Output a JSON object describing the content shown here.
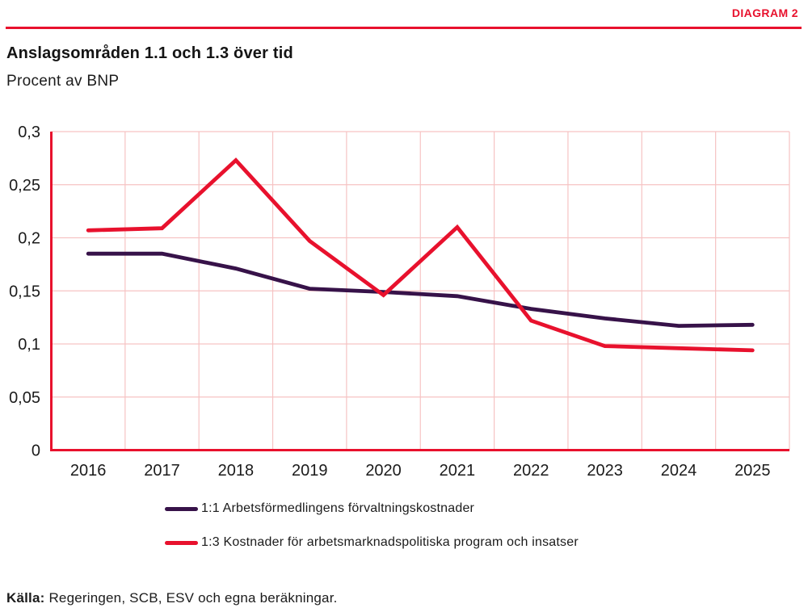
{
  "header": {
    "diagram_label": "DIAGRAM 2",
    "title": "Anslagsområden 1.1 och 1.3 över tid",
    "subtitle": "Procent av BNP",
    "accent_color": "#e8112d"
  },
  "chart_data": {
    "type": "line",
    "title": "Anslagsområden 1.1 och 1.3 över tid",
    "subtitle_ylabel": "Procent av BNP",
    "x_labels": [
      "2016",
      "2017",
      "2018",
      "2019",
      "2020",
      "2021",
      "2022",
      "2023",
      "2024",
      "2025"
    ],
    "series": [
      {
        "name": "1:1 Arbetsförmedlingens förvaltningskostnader",
        "color": "#371249",
        "values": [
          0.185,
          0.185,
          0.171,
          0.152,
          0.149,
          0.145,
          0.133,
          0.124,
          0.117,
          0.118
        ]
      },
      {
        "name": "1:3 Kostnader för arbetsmarknadspolitiska program och insatser",
        "color": "#e8112d",
        "values": [
          0.207,
          0.209,
          0.273,
          0.197,
          0.146,
          0.21,
          0.122,
          0.098,
          0.096,
          0.094
        ]
      }
    ],
    "ylim": [
      0,
      0.3
    ],
    "yticks": [
      0,
      0.05,
      0.1,
      0.15,
      0.2,
      0.25,
      0.3
    ],
    "ytick_labels": [
      "0",
      "0,05",
      "0,1",
      "0,15",
      "0,2",
      "0,25",
      "0,3"
    ],
    "decimal_separator": ",",
    "grid": true,
    "gridline_color": "#f6c3c3",
    "axis_color": "#e8112d",
    "legend_position": "bottom-left"
  },
  "footer": {
    "source_label": "Källa:",
    "source_text": "Regeringen, SCB, ESV och egna beräkningar."
  }
}
